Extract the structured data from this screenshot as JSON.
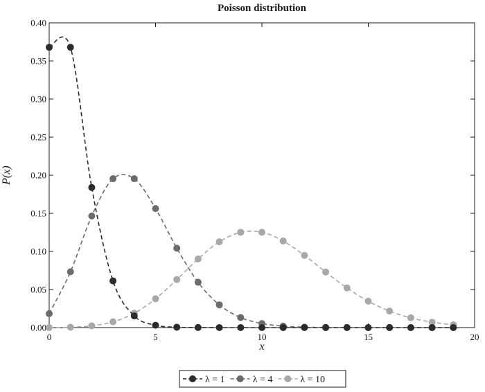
{
  "chart_data": {
    "type": "line",
    "title": "Poisson distribution",
    "xlabel": "x",
    "ylabel": "P(x)",
    "xlim": [
      0,
      20
    ],
    "ylim": [
      0,
      0.4
    ],
    "xticks": [
      0,
      5,
      10,
      15,
      20
    ],
    "yticks": [
      0.0,
      0.05,
      0.1,
      0.15,
      0.2,
      0.25,
      0.3,
      0.35,
      0.4
    ],
    "xtick_labels": [
      "0",
      "5",
      "10",
      "15",
      "20"
    ],
    "ytick_labels": [
      "0.00",
      "0.05",
      "0.10",
      "0.15",
      "0.20",
      "0.25",
      "0.30",
      "0.35",
      "0.40"
    ],
    "grid": false,
    "legend_position": "bottom-center",
    "series": [
      {
        "name": "λ = 1",
        "lambda": 1,
        "color": "#2b2b2b",
        "x": [
          0,
          1,
          2,
          3,
          4,
          5,
          6,
          7,
          8,
          9,
          10,
          11,
          12,
          13,
          14,
          15,
          16,
          17,
          18,
          19
        ],
        "values": [
          0.3679,
          0.3679,
          0.1839,
          0.0613,
          0.0153,
          0.0031,
          0.0005,
          0.0001,
          0.0,
          0.0,
          0.0,
          0.0,
          0.0,
          0.0,
          0.0,
          0.0,
          0.0,
          0.0,
          0.0,
          0.0
        ]
      },
      {
        "name": "λ = 4",
        "lambda": 4,
        "color": "#6b6b6b",
        "x": [
          0,
          1,
          2,
          3,
          4,
          5,
          6,
          7,
          8,
          9,
          10,
          11,
          12,
          13,
          14,
          15,
          16,
          17,
          18,
          19
        ],
        "values": [
          0.0183,
          0.0733,
          0.1465,
          0.1954,
          0.1954,
          0.1563,
          0.1042,
          0.0595,
          0.0298,
          0.0132,
          0.0053,
          0.0019,
          0.0006,
          0.0002,
          0.0001,
          0.0,
          0.0,
          0.0,
          0.0,
          0.0
        ]
      },
      {
        "name": "λ = 10",
        "lambda": 10,
        "color": "#a8a8a8",
        "x": [
          0,
          1,
          2,
          3,
          4,
          5,
          6,
          7,
          8,
          9,
          10,
          11,
          12,
          13,
          14,
          15,
          16,
          17,
          18,
          19
        ],
        "values": [
          0.0,
          0.0005,
          0.0023,
          0.0076,
          0.0189,
          0.0378,
          0.0631,
          0.0901,
          0.1126,
          0.1251,
          0.1251,
          0.1137,
          0.0948,
          0.0729,
          0.0521,
          0.0347,
          0.0217,
          0.0128,
          0.0071,
          0.0037
        ]
      }
    ]
  }
}
